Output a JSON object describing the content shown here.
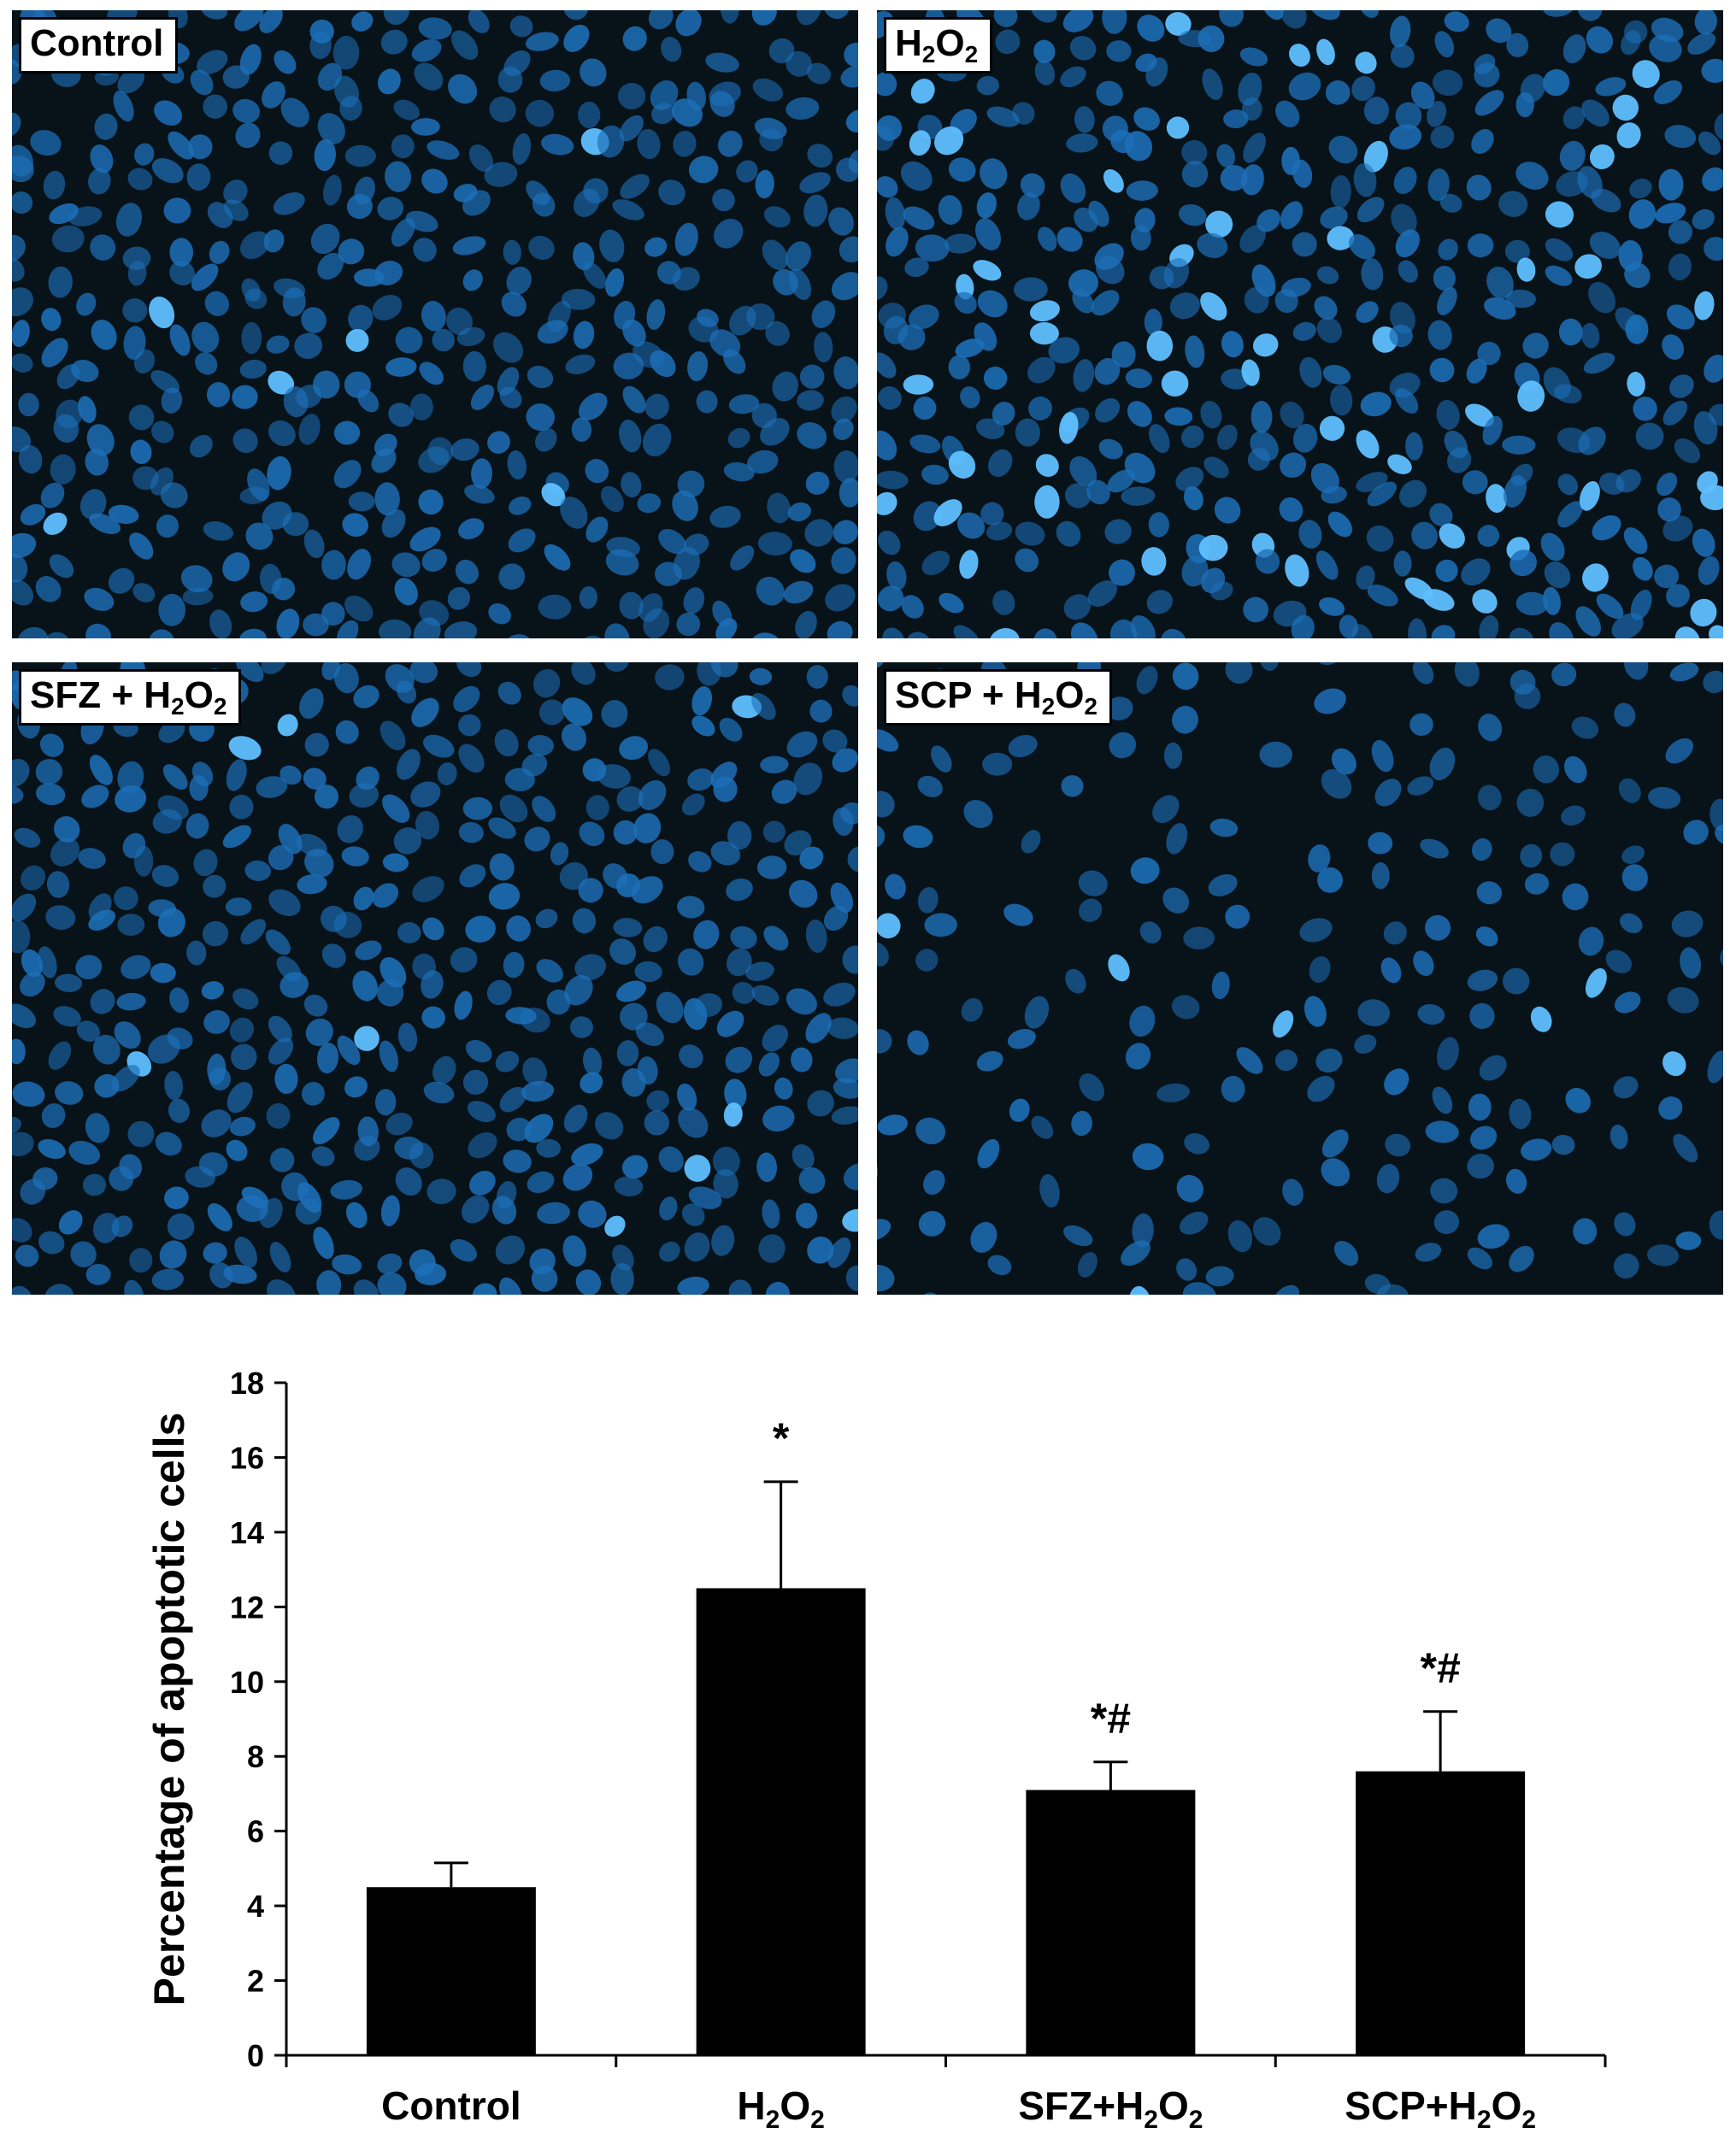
{
  "panels": [
    {
      "id": "control",
      "label": "Control",
      "label_sub": "",
      "label_tail": "",
      "density": "high",
      "bright_fraction": 0.02
    },
    {
      "id": "h2o2",
      "label": "H",
      "label_sub": "2",
      "label_tail": "O",
      "label_sub2": "2",
      "density": "high",
      "bright_fraction": 0.12
    },
    {
      "id": "sfz",
      "label": "SFZ + H",
      "label_sub": "2",
      "label_tail": "O",
      "label_sub2": "2",
      "density": "high",
      "bright_fraction": 0.02
    },
    {
      "id": "scp",
      "label": "SCP + H",
      "label_sub": "2",
      "label_tail": "O",
      "label_sub2": "2",
      "density": "medium",
      "bright_fraction": 0.08
    }
  ],
  "colors": {
    "panel_background": "#071219",
    "nucleus": "#1d6fb8",
    "nucleus_bright": "#5fc0ff",
    "bar": "#000000"
  },
  "chart_data": {
    "type": "bar",
    "categories": [
      {
        "pre": "Control",
        "sub": "",
        "mid": "",
        "sub2": ""
      },
      {
        "pre": "H",
        "sub": "2",
        "mid": "O",
        "sub2": "2"
      },
      {
        "pre": "SFZ+H",
        "sub": "2",
        "mid": "O",
        "sub2": "2"
      },
      {
        "pre": "SCP+H",
        "sub": "2",
        "mid": "O",
        "sub2": "2"
      }
    ],
    "values": [
      4.5,
      12.5,
      7.1,
      7.6
    ],
    "errors": [
      0.65,
      2.85,
      0.75,
      1.6
    ],
    "annotations": [
      "",
      "*",
      "*#",
      "*#"
    ],
    "ylabel": "Percentage of apoptotic cells",
    "xlabel": "",
    "ylim": [
      0,
      18
    ],
    "yticks": [
      0,
      2,
      4,
      6,
      8,
      10,
      12,
      14,
      16,
      18
    ],
    "grid": false,
    "legend": "none"
  }
}
